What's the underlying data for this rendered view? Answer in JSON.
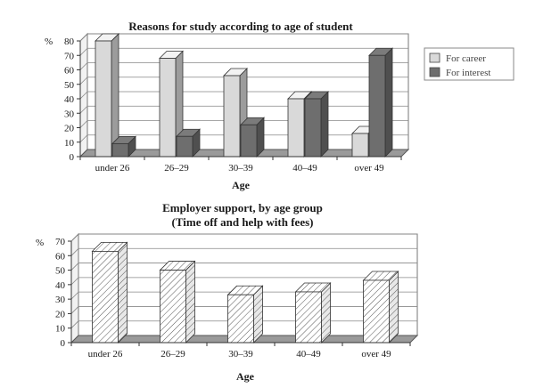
{
  "chart_data": [
    {
      "type": "bar",
      "title": "Reasons for study according to age of student",
      "xlabel": "Age",
      "ylabel": "%",
      "ylim": [
        0,
        80
      ],
      "yticks": [
        0,
        10,
        20,
        30,
        40,
        50,
        60,
        70,
        80
      ],
      "categories": [
        "under 26",
        "26–29",
        "30–39",
        "40–49",
        "over 49"
      ],
      "series": [
        {
          "name": "For career",
          "values": [
            80,
            68,
            56,
            40,
            16
          ],
          "color": "#d9d9d9"
        },
        {
          "name": "For interest",
          "values": [
            9,
            14,
            22,
            40,
            70
          ],
          "color": "#6e6e6e"
        }
      ],
      "legend": "right",
      "grid": true
    },
    {
      "type": "bar",
      "title": "Employer support, by age group",
      "subtitle": "(Time off and help with fees)",
      "xlabel": "Age",
      "ylabel": "%",
      "ylim": [
        0,
        70
      ],
      "yticks": [
        0,
        10,
        20,
        30,
        40,
        50,
        60,
        70
      ],
      "categories": [
        "under 26",
        "26–29",
        "30–39",
        "40–49",
        "over 49"
      ],
      "series": [
        {
          "values": [
            63,
            50,
            33,
            35,
            43
          ],
          "color": "#ffffff",
          "pattern": "diagonal-hatch"
        }
      ],
      "grid": true
    }
  ]
}
